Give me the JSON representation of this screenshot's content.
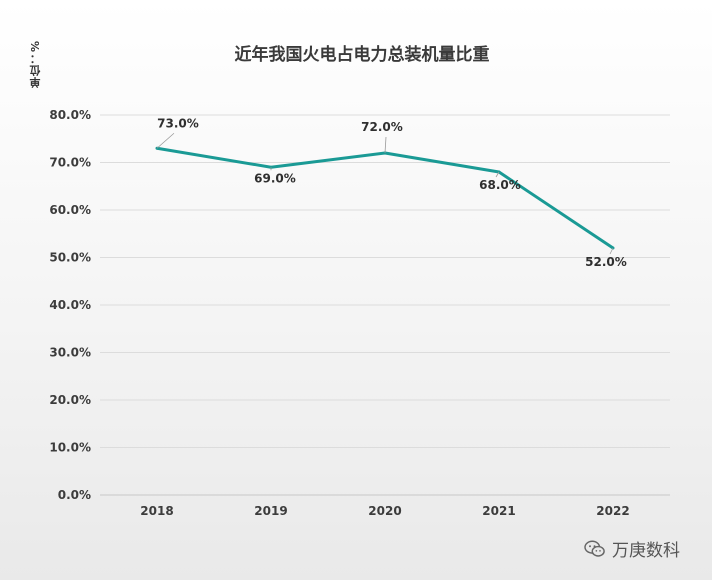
{
  "chart_data": {
    "type": "line",
    "title": "近年我国火电占电力总装机量比重",
    "unit_label": "单位：%",
    "categories": [
      "2018",
      "2019",
      "2020",
      "2021",
      "2022"
    ],
    "values": [
      73.0,
      69.0,
      72.0,
      68.0,
      52.0
    ],
    "data_labels": [
      "73.0%",
      "69.0%",
      "72.0%",
      "68.0%",
      "52.0%"
    ],
    "y_ticks": [
      "0.0%",
      "10.0%",
      "20.0%",
      "30.0%",
      "40.0%",
      "50.0%",
      "60.0%",
      "70.0%",
      "80.0%"
    ],
    "ylim": [
      0,
      80
    ],
    "grid": true,
    "line_color": "#1a9a95"
  },
  "watermark": {
    "text": "万庚数科",
    "icon": "wechat-icon"
  }
}
